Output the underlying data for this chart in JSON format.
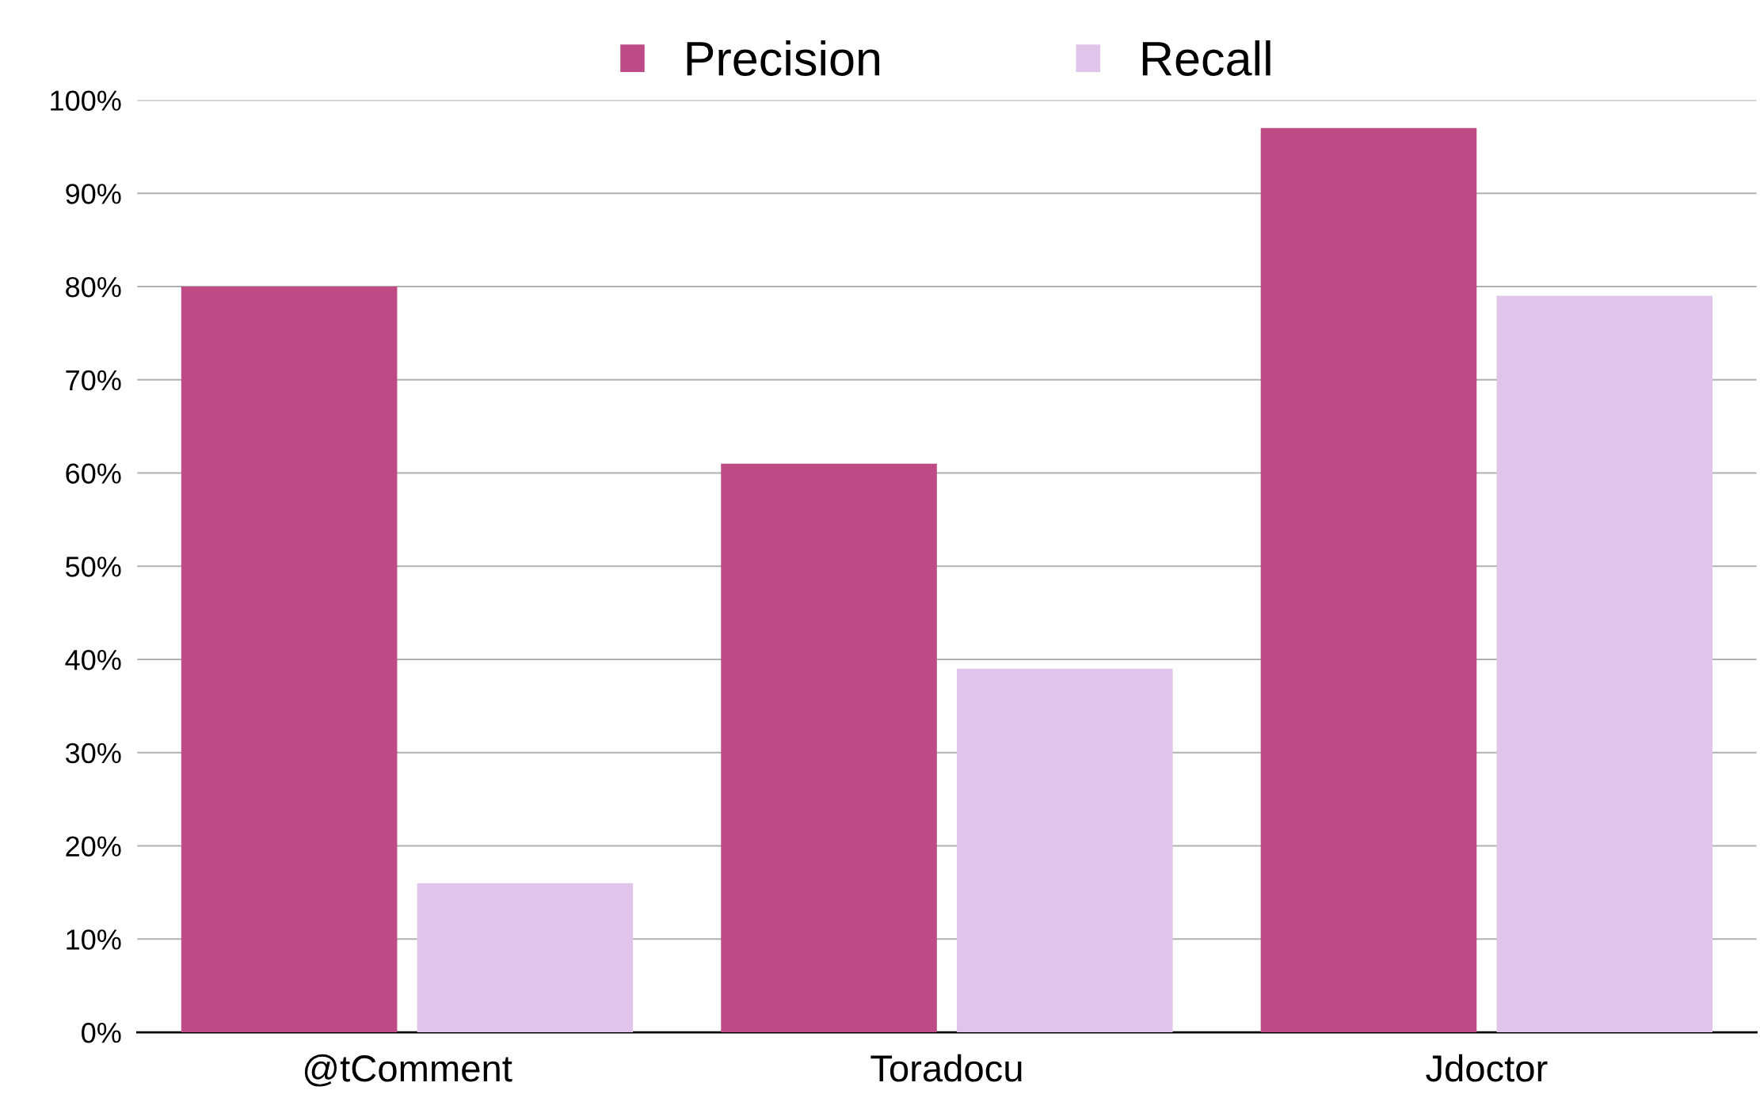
{
  "chart_data": {
    "type": "bar",
    "categories": [
      "@tComment",
      "Toradocu",
      "Jdoctor"
    ],
    "series": [
      {
        "name": "Precision",
        "color": "#be4b85",
        "values": [
          80,
          61,
          97
        ]
      },
      {
        "name": "Recall",
        "color": "#e1c4ea",
        "values": [
          16,
          39,
          79
        ]
      }
    ],
    "ylim": [
      0,
      100
    ],
    "yticks": [
      {
        "value": 0,
        "label": "0%"
      },
      {
        "value": 10,
        "label": "10%"
      },
      {
        "value": 20,
        "label": "20%"
      },
      {
        "value": 30,
        "label": "30%"
      },
      {
        "value": 40,
        "label": "40%"
      },
      {
        "value": 50,
        "label": "50%"
      },
      {
        "value": 60,
        "label": "60%"
      },
      {
        "value": 70,
        "label": "70%"
      },
      {
        "value": 80,
        "label": "80%"
      },
      {
        "value": 90,
        "label": "90%"
      },
      {
        "value": 100,
        "label": "100%"
      }
    ],
    "grid": "y",
    "legend": "top"
  }
}
